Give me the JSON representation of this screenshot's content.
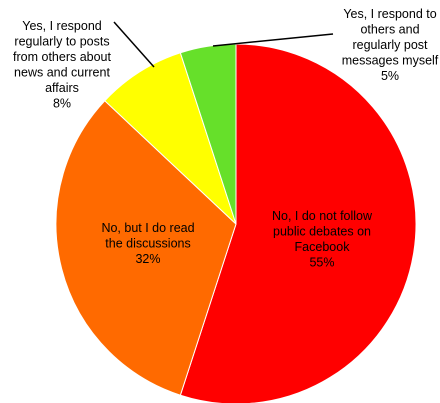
{
  "chart_data": {
    "type": "pie",
    "title": "",
    "start_angle_deg": 0,
    "direction": "clockwise",
    "slices": [
      {
        "lines": [
          "No, I do not follow",
          "public debates on",
          "Facebook",
          "55%"
        ],
        "value": 55,
        "color": "#ff0000"
      },
      {
        "lines": [
          "No, but I do read",
          "the discussions",
          "32%"
        ],
        "value": 32,
        "color": "#ff6a00"
      },
      {
        "lines": [
          "Yes, I respond",
          "regularly to posts",
          "from others about",
          "news and current",
          "affairs",
          "8%"
        ],
        "value": 8,
        "color": "#ffff00"
      },
      {
        "lines": [
          "Yes, I respond to",
          "others and",
          "regularly post",
          "messages myself",
          "5%"
        ],
        "value": 5,
        "color": "#66e02a"
      }
    ]
  }
}
